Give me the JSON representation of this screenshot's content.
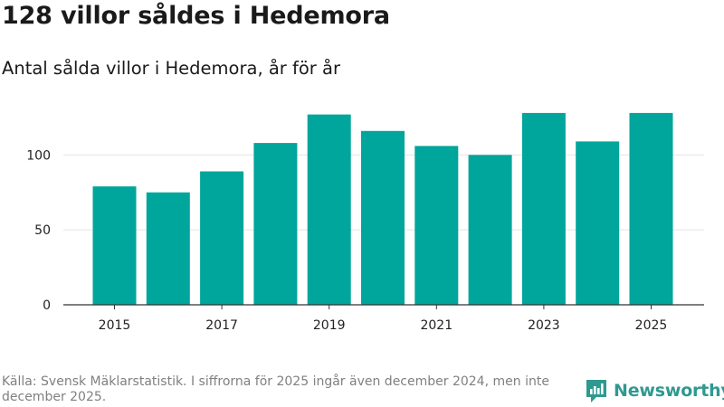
{
  "title": "128 villor såldes i Hedemora",
  "subtitle": "Antal sålda villor i Hedemora, år för år",
  "footer": "Källa: Svensk Mäklarstatistik. I siffrorna för 2025 ingår även december 2024, men inte december 2025.",
  "brand": {
    "name": "Newsworthy",
    "logo": "newsworthy-logo-icon"
  },
  "colors": {
    "bar": "#00a59b",
    "grid": "#e3e3e3",
    "axis": "#333333",
    "brand": "#2f9990"
  },
  "chart_data": {
    "type": "bar",
    "title": "Antal sålda villor i Hedemora, år för år",
    "xlabel": "",
    "ylabel": "",
    "categories": [
      "2015",
      "2016",
      "2017",
      "2018",
      "2019",
      "2020",
      "2021",
      "2022",
      "2023",
      "2024",
      "2025"
    ],
    "values": [
      79,
      75,
      89,
      108,
      127,
      116,
      106,
      100,
      128,
      109,
      128
    ],
    "ylim": [
      0,
      137
    ],
    "yticks": [
      0,
      50,
      100
    ],
    "xtick_labels": [
      "2015",
      "2017",
      "2019",
      "2021",
      "2023",
      "2025"
    ],
    "grid": true,
    "legend": "none"
  }
}
